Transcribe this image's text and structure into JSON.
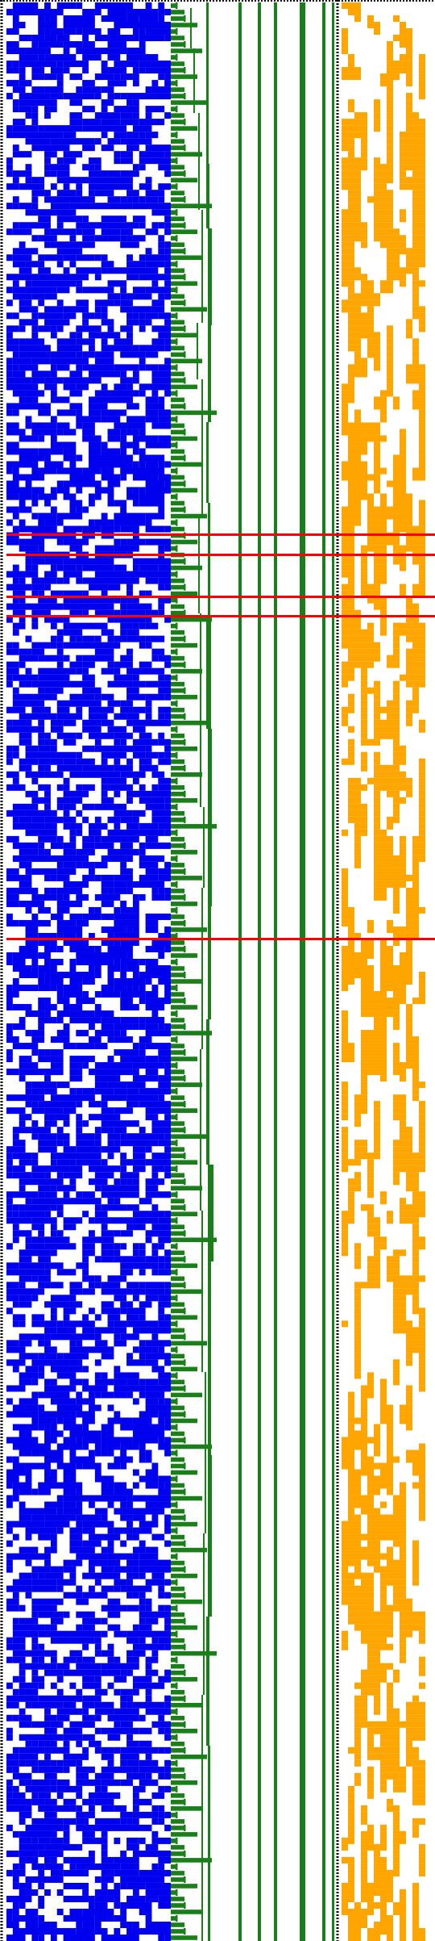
{
  "colors": {
    "background": "#ffffff",
    "border": "#000000",
    "blue_block": "#0000ee",
    "green": "#1a7f1a",
    "orange": "#ffa500",
    "red": "#ff0000"
  },
  "grid": {
    "rows": 300,
    "blue_cols": 26,
    "orange_cols": 13,
    "blue_density": 0.52,
    "orange_density": 0.5
  },
  "structure": {
    "green_staircase_cycle_rows": 16,
    "green_vertical_line_count": 6,
    "red_highlight_row_count": 5
  }
}
